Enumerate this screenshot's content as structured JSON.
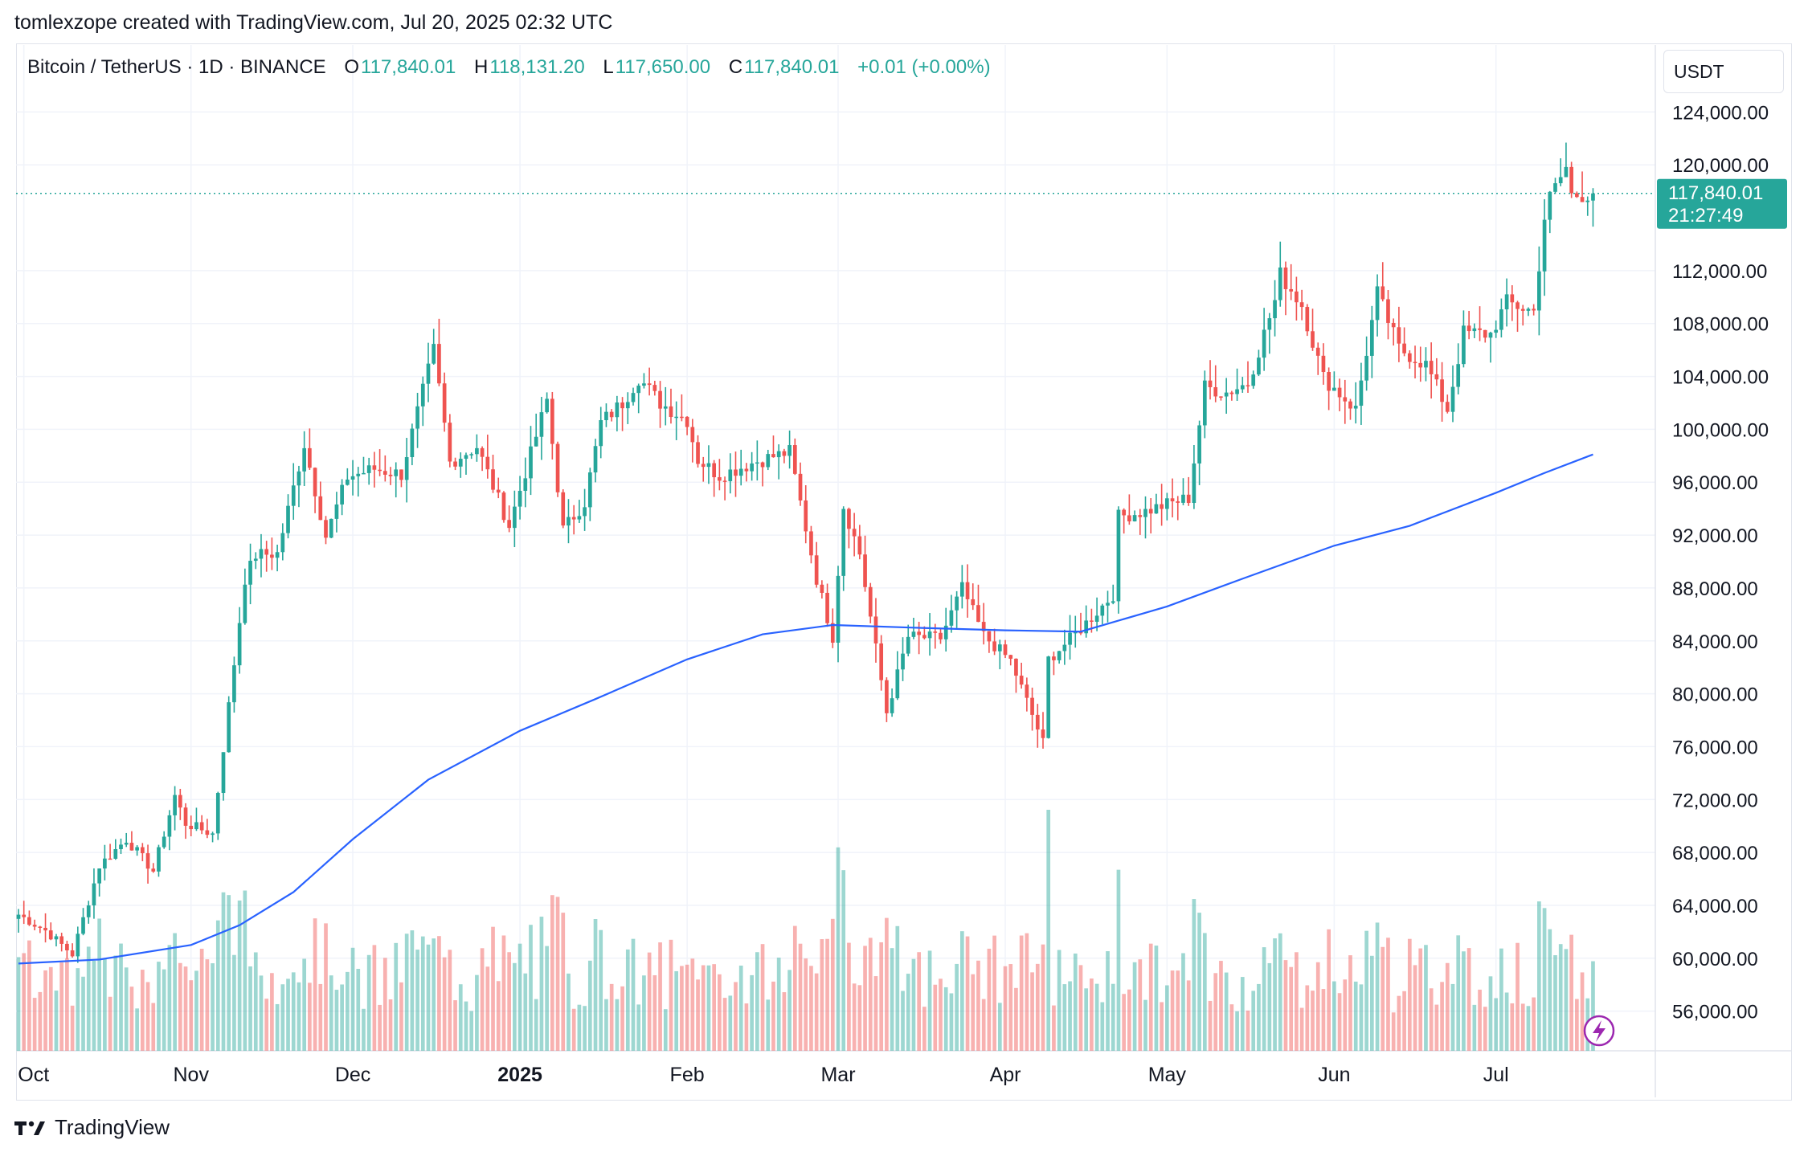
{
  "header": {
    "title": "tomlexzope created with TradingView.com, Jul 20, 2025 02:32 UTC"
  },
  "symbol": {
    "name": "Bitcoin / TetherUS · 1D · BINANCE",
    "o_label": "O",
    "o_value": "117,840.01",
    "h_label": "H",
    "h_value": "118,131.20",
    "l_label": "L",
    "l_value": "117,650.00",
    "c_label": "C",
    "c_value": "117,840.01",
    "change": "+0.01 (+0.00%)"
  },
  "currency": "USDT",
  "price_tag": {
    "price": "117,840.01",
    "countdown": "21:27:49"
  },
  "footer": {
    "brand": "TradingView"
  },
  "colors": {
    "up": "#26a69a",
    "down": "#ef5350",
    "ma": "#2962ff",
    "grid": "#f0f3fa"
  },
  "chart_data": {
    "type": "candlestick",
    "ylim": [
      53000,
      127000
    ],
    "y_ticks": [
      "124,000.00",
      "120,000.00",
      "112,000.00",
      "108,000.00",
      "104,000.00",
      "100,000.00",
      "96,000.00",
      "92,000.00",
      "88,000.00",
      "84,000.00",
      "80,000.00",
      "76,000.00",
      "72,000.00",
      "68,000.00",
      "64,000.00",
      "60,000.00",
      "56,000.00"
    ],
    "x_labels": [
      {
        "label": "Oct",
        "bold": false
      },
      {
        "label": "Nov",
        "bold": false
      },
      {
        "label": "Dec",
        "bold": false
      },
      {
        "label": "2025",
        "bold": true
      },
      {
        "label": "Feb",
        "bold": false
      },
      {
        "label": "Mar",
        "bold": false
      },
      {
        "label": "Apr",
        "bold": false
      },
      {
        "label": "May",
        "bold": false
      },
      {
        "label": "Jun",
        "bold": false
      },
      {
        "label": "Jul",
        "bold": false
      }
    ],
    "last_price": 117840.01,
    "close_anchors": [
      [
        "2024-09-30",
        63300
      ],
      [
        "2024-10-05",
        62100
      ],
      [
        "2024-10-10",
        60300
      ],
      [
        "2024-10-15",
        67000
      ],
      [
        "2024-10-20",
        69000
      ],
      [
        "2024-10-25",
        66600
      ],
      [
        "2024-10-29",
        72300
      ],
      [
        "2024-10-31",
        70200
      ],
      [
        "2024-11-05",
        69400
      ],
      [
        "2024-11-07",
        75900
      ],
      [
        "2024-11-11",
        88700
      ],
      [
        "2024-11-13",
        90500
      ],
      [
        "2024-11-17",
        90600
      ],
      [
        "2024-11-22",
        98900
      ],
      [
        "2024-11-26",
        91900
      ],
      [
        "2024-11-30",
        96400
      ],
      [
        "2024-12-05",
        97000
      ],
      [
        "2024-12-10",
        96600
      ],
      [
        "2024-12-16",
        106000
      ],
      [
        "2024-12-19",
        97500
      ],
      [
        "2024-12-24",
        98700
      ],
      [
        "2024-12-30",
        92700
      ],
      [
        "2025-01-06",
        102200
      ],
      [
        "2025-01-09",
        92400
      ],
      [
        "2025-01-13",
        94500
      ],
      [
        "2025-01-16",
        100500
      ],
      [
        "2025-01-20",
        102000
      ],
      [
        "2025-01-23",
        103900
      ],
      [
        "2025-01-27",
        102000
      ],
      [
        "2025-02-01",
        100700
      ],
      [
        "2025-02-03",
        97700
      ],
      [
        "2025-02-07",
        96500
      ],
      [
        "2025-02-14",
        97600
      ],
      [
        "2025-02-20",
        98300
      ],
      [
        "2025-02-25",
        88700
      ],
      [
        "2025-02-28",
        84300
      ],
      [
        "2025-03-02",
        94200
      ],
      [
        "2025-03-05",
        90600
      ],
      [
        "2025-03-10",
        78600
      ],
      [
        "2025-03-14",
        84300
      ],
      [
        "2025-03-20",
        84200
      ],
      [
        "2025-03-24",
        88000
      ],
      [
        "2025-03-28",
        84400
      ],
      [
        "2025-04-02",
        82500
      ],
      [
        "2025-04-06",
        78400
      ],
      [
        "2025-04-08",
        76300
      ],
      [
        "2025-04-09",
        82600
      ],
      [
        "2025-04-14",
        84500
      ],
      [
        "2025-04-21",
        87500
      ],
      [
        "2025-04-22",
        93400
      ],
      [
        "2025-04-27",
        93800
      ],
      [
        "2025-04-30",
        94200
      ],
      [
        "2025-05-05",
        94800
      ],
      [
        "2025-05-08",
        103200
      ],
      [
        "2025-05-12",
        102800
      ],
      [
        "2025-05-16",
        103500
      ],
      [
        "2025-05-21",
        109700
      ],
      [
        "2025-05-22",
        111700
      ],
      [
        "2025-05-26",
        109400
      ],
      [
        "2025-05-30",
        103900
      ],
      [
        "2025-06-05",
        101500
      ],
      [
        "2025-06-09",
        110300
      ],
      [
        "2025-06-13",
        106100
      ],
      [
        "2025-06-18",
        104900
      ],
      [
        "2025-06-22",
        101500
      ],
      [
        "2025-06-25",
        107300
      ],
      [
        "2025-06-30",
        107200
      ],
      [
        "2025-07-03",
        109600
      ],
      [
        "2025-07-08",
        108900
      ],
      [
        "2025-07-10",
        116000
      ],
      [
        "2025-07-11",
        117500
      ],
      [
        "2025-07-14",
        119800
      ],
      [
        "2025-07-15",
        117700
      ],
      [
        "2025-07-19",
        117840
      ]
    ],
    "ma_line": {
      "name": "",
      "points": [
        [
          "2024-09-30",
          59600
        ],
        [
          "2024-10-15",
          59900
        ],
        [
          "2024-11-01",
          61000
        ],
        [
          "2024-11-10",
          62500
        ],
        [
          "2024-11-20",
          65000
        ],
        [
          "2024-12-01",
          69000
        ],
        [
          "2024-12-15",
          73500
        ],
        [
          "2025-01-01",
          77200
        ],
        [
          "2025-01-15",
          79600
        ],
        [
          "2025-02-01",
          82600
        ],
        [
          "2025-02-15",
          84500
        ],
        [
          "2025-02-28",
          85200
        ],
        [
          "2025-03-15",
          85000
        ],
        [
          "2025-04-01",
          84800
        ],
        [
          "2025-04-15",
          84700
        ],
        [
          "2025-05-01",
          86600
        ],
        [
          "2025-05-15",
          88700
        ],
        [
          "2025-06-01",
          91200
        ],
        [
          "2025-06-15",
          92700
        ],
        [
          "2025-07-01",
          95200
        ],
        [
          "2025-07-10",
          96700
        ],
        [
          "2025-07-19",
          98100
        ]
      ]
    }
  }
}
